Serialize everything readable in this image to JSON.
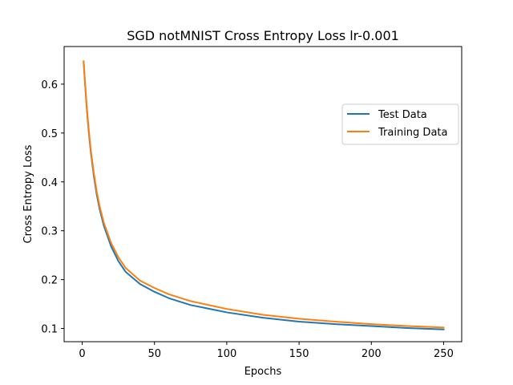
{
  "chart_data": {
    "type": "line",
    "title": "SGD notMNIST Cross Entropy Loss lr-0.001",
    "xlabel": "Epochs",
    "ylabel": "Cross Entropy Loss",
    "xlim": [
      -12.5,
      262.5
    ],
    "ylim": [
      0.073,
      0.677
    ],
    "xticks": [
      "0",
      "50",
      "100",
      "150",
      "200",
      "250"
    ],
    "yticks": [
      "0.1",
      "0.2",
      "0.3",
      "0.4",
      "0.5",
      "0.6"
    ],
    "xtick_values": [
      0,
      50,
      100,
      150,
      200,
      250
    ],
    "ytick_values": [
      0.1,
      0.2,
      0.3,
      0.4,
      0.5,
      0.6
    ],
    "grid": false,
    "legend_position": "upper right",
    "x": [
      1,
      2,
      3,
      4,
      5,
      6,
      8,
      10,
      12,
      15,
      20,
      25,
      30,
      40,
      50,
      60,
      75,
      100,
      125,
      150,
      175,
      200,
      225,
      250
    ],
    "series": [
      {
        "name": "Test Data",
        "color": "#1f77b4",
        "values": [
          0.645,
          0.6,
          0.557,
          0.52,
          0.488,
          0.46,
          0.413,
          0.375,
          0.345,
          0.31,
          0.268,
          0.238,
          0.216,
          0.191,
          0.175,
          0.162,
          0.148,
          0.133,
          0.122,
          0.114,
          0.109,
          0.105,
          0.101,
          0.098
        ]
      },
      {
        "name": "Training Data",
        "color": "#ff7f0e",
        "values": [
          0.647,
          0.603,
          0.561,
          0.525,
          0.493,
          0.465,
          0.419,
          0.381,
          0.351,
          0.316,
          0.275,
          0.246,
          0.224,
          0.198,
          0.183,
          0.17,
          0.156,
          0.14,
          0.128,
          0.12,
          0.114,
          0.109,
          0.105,
          0.102
        ]
      }
    ]
  }
}
